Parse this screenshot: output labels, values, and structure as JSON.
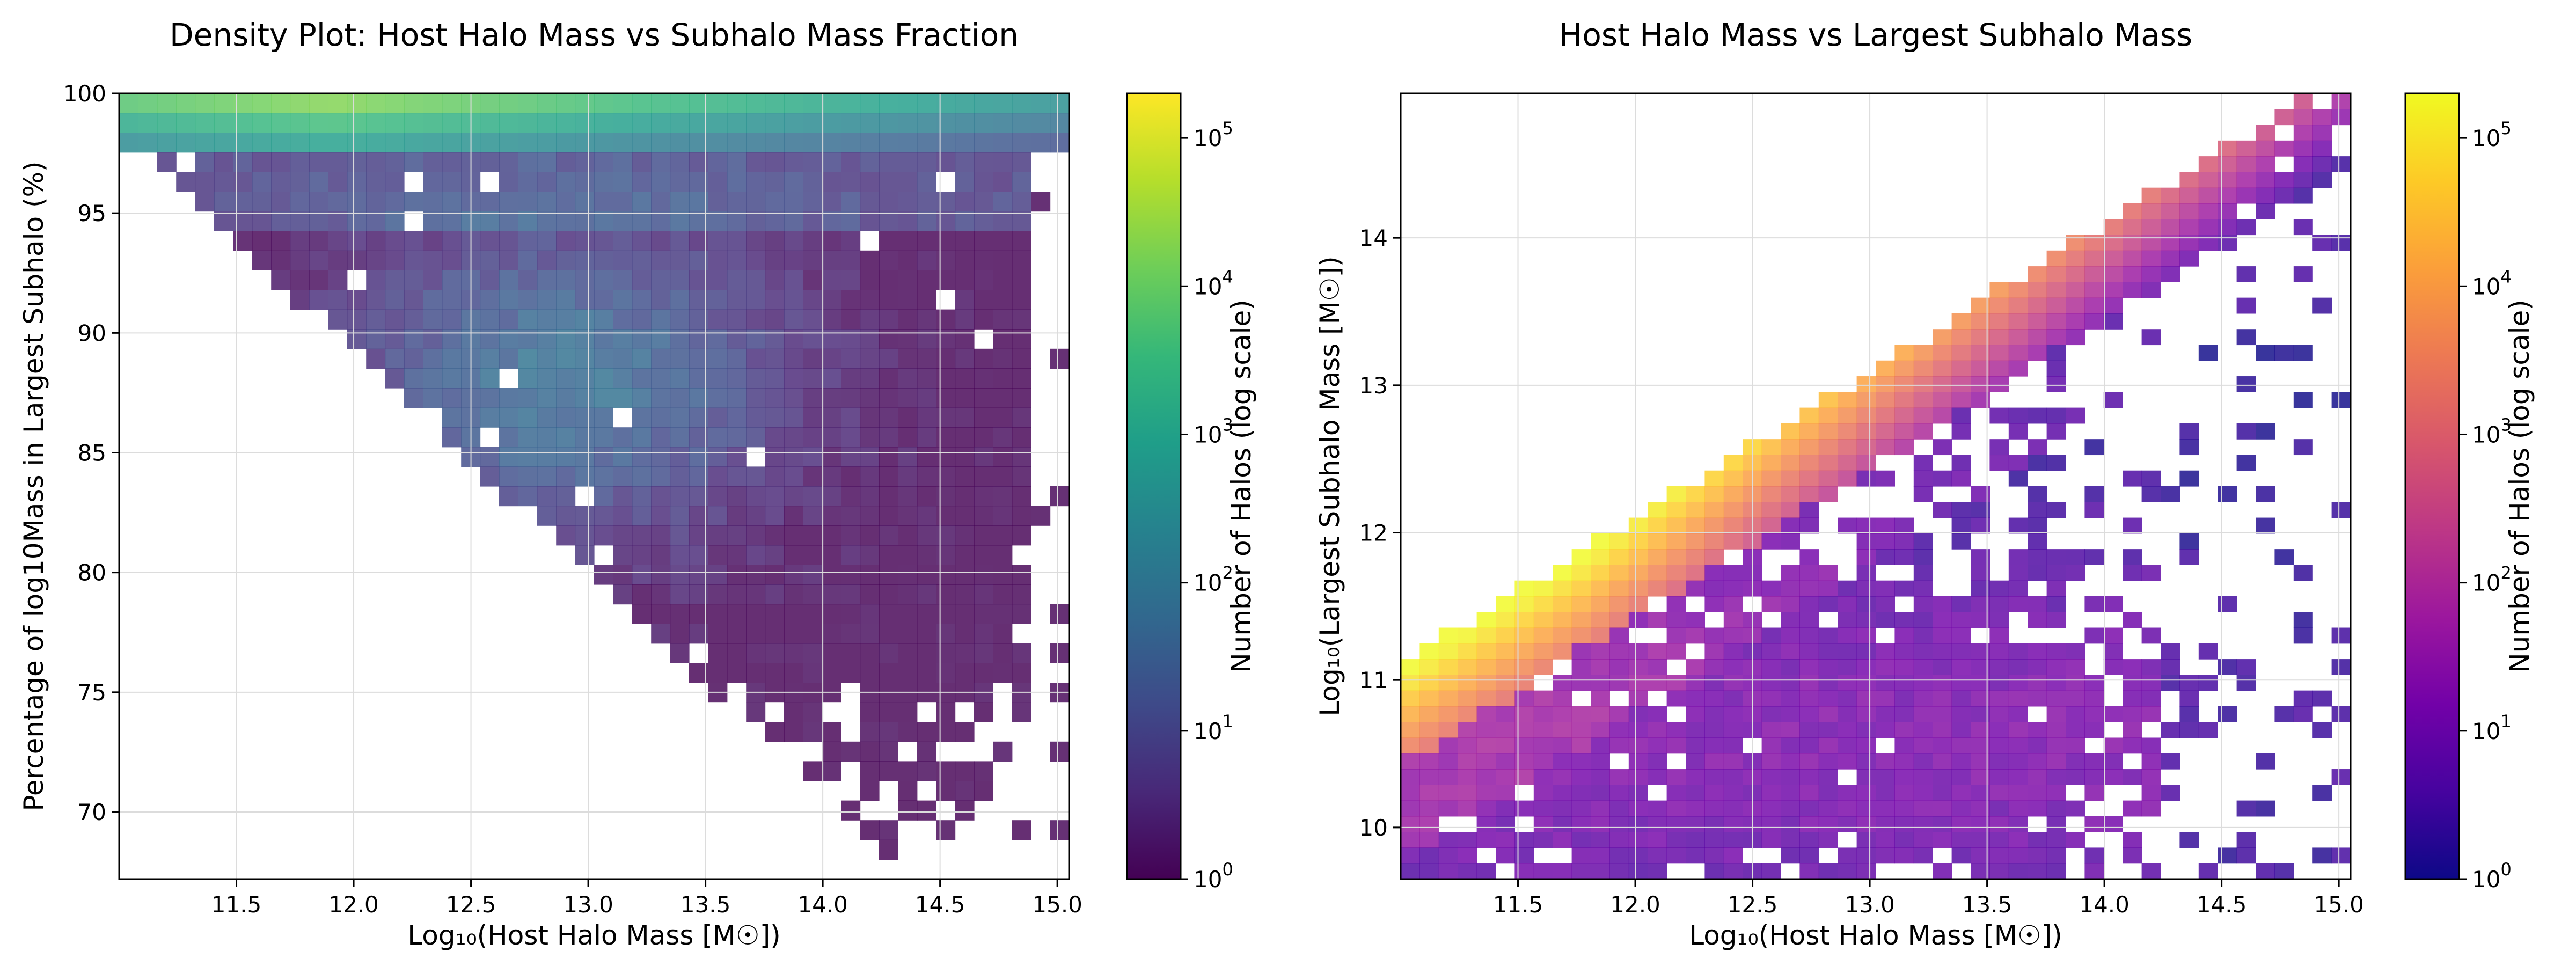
{
  "chart_data": [
    {
      "type": "heatmap",
      "title": "Density Plot: Host Halo Mass vs Subhalo Mass Fraction",
      "xlabel": "Log₁₀(Host Halo Mass [M☉])",
      "ylabel": "Percentage of log10Mass in Largest Subhalo (%)",
      "colorbar_label": "Number of Halos (log scale)",
      "colormap": "viridis",
      "xlim": [
        11.0,
        15.05
      ],
      "ylim": [
        67.2,
        100.0
      ],
      "xticks": [
        "11.5",
        "12.0",
        "12.5",
        "13.0",
        "13.5",
        "14.0",
        "14.5",
        "15.0"
      ],
      "yticks": [
        "70",
        "75",
        "80",
        "85",
        "90",
        "95",
        "100"
      ],
      "colorbar_range": [
        1,
        200000
      ],
      "colorbar_ticks": [
        {
          "base": "10",
          "exp": "0"
        },
        {
          "base": "10",
          "exp": "1"
        },
        {
          "base": "10",
          "exp": "2"
        },
        {
          "base": "10",
          "exp": "3"
        },
        {
          "base": "10",
          "exp": "4"
        },
        {
          "base": "10",
          "exp": "5"
        }
      ],
      "log_color_scale": true,
      "grid": true
    },
    {
      "type": "heatmap",
      "title": "Host Halo Mass vs Largest Subhalo Mass",
      "xlabel": "Log₁₀(Host Halo Mass [M☉])",
      "ylabel": "Log₁₀(Largest Subhalo Mass [M☉])",
      "colorbar_label": "Number of Halos (log scale)",
      "colormap": "plasma",
      "xlim": [
        11.0,
        15.05
      ],
      "ylim": [
        9.65,
        14.98
      ],
      "xticks": [
        "11.5",
        "12.0",
        "12.5",
        "13.0",
        "13.5",
        "14.0",
        "14.5",
        "15.0"
      ],
      "yticks": [
        "10",
        "11",
        "12",
        "13",
        "14"
      ],
      "colorbar_range": [
        1,
        200000
      ],
      "colorbar_ticks": [
        {
          "base": "10",
          "exp": "0"
        },
        {
          "base": "10",
          "exp": "1"
        },
        {
          "base": "10",
          "exp": "2"
        },
        {
          "base": "10",
          "exp": "3"
        },
        {
          "base": "10",
          "exp": "4"
        },
        {
          "base": "10",
          "exp": "5"
        }
      ],
      "log_color_scale": true,
      "grid": true
    }
  ]
}
